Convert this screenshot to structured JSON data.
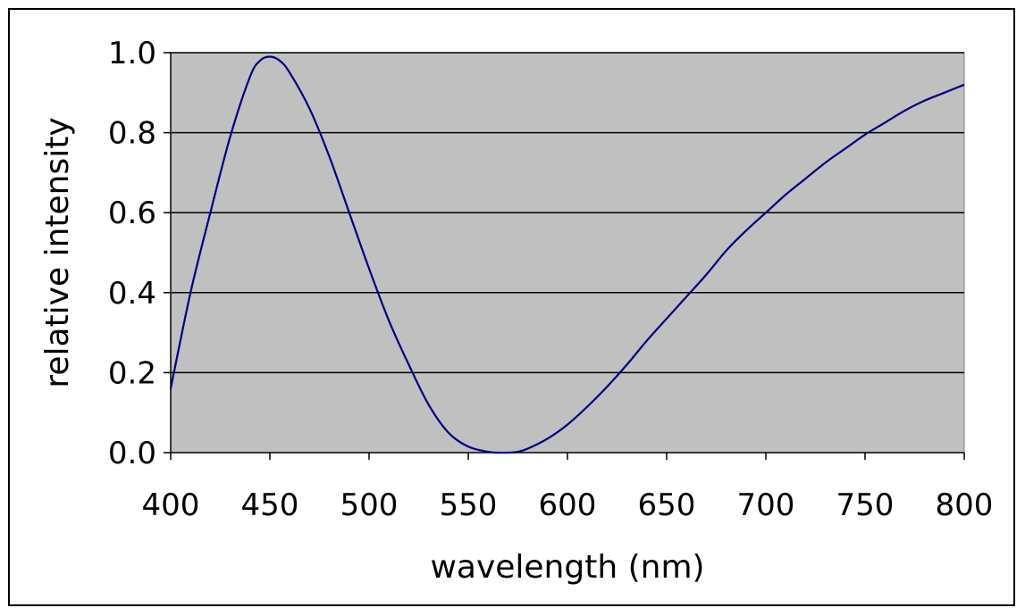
{
  "chart_data": {
    "type": "line",
    "title": "",
    "xlabel": "wavelength (nm)",
    "ylabel": "relative intensity",
    "xlim": [
      400,
      800
    ],
    "ylim": [
      0,
      1.0
    ],
    "x_ticks": [
      "400",
      "450",
      "500",
      "550",
      "600",
      "650",
      "700",
      "750",
      "800"
    ],
    "y_ticks": [
      "0.0",
      "0.2",
      "0.4",
      "0.6",
      "0.8",
      "1.0"
    ],
    "grid": "horizontal",
    "legend": "none",
    "plot_background": "#c0c0c0",
    "series": [
      {
        "color": "#000080",
        "x": [
          400,
          410,
          420,
          430,
          440,
          445,
          450,
          455,
          460,
          470,
          480,
          490,
          500,
          510,
          520,
          530,
          540,
          550,
          560,
          565,
          570,
          575,
          580,
          590,
          600,
          610,
          620,
          630,
          640,
          650,
          660,
          670,
          680,
          690,
          700,
          710,
          720,
          730,
          740,
          750,
          760,
          770,
          780,
          790,
          800
        ],
        "y": [
          0.16,
          0.4,
          0.6,
          0.79,
          0.94,
          0.98,
          0.99,
          0.98,
          0.95,
          0.86,
          0.74,
          0.6,
          0.46,
          0.33,
          0.22,
          0.12,
          0.05,
          0.015,
          0.002,
          0.0,
          0.0,
          0.002,
          0.01,
          0.035,
          0.07,
          0.115,
          0.165,
          0.22,
          0.28,
          0.335,
          0.39,
          0.445,
          0.505,
          0.555,
          0.6,
          0.645,
          0.685,
          0.725,
          0.76,
          0.795,
          0.825,
          0.855,
          0.88,
          0.9,
          0.92
        ]
      }
    ]
  }
}
